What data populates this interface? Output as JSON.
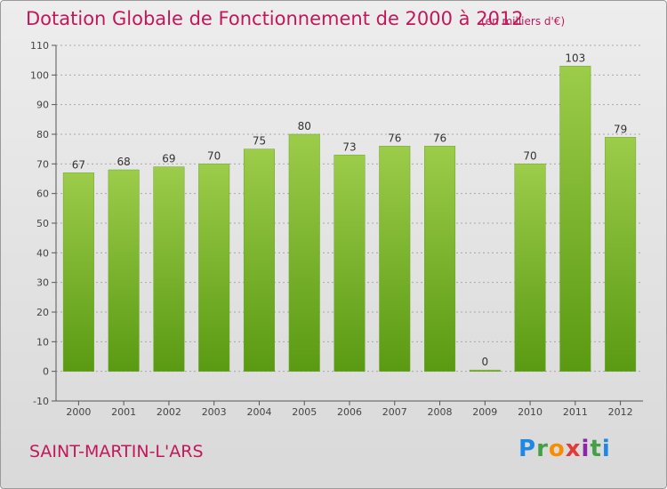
{
  "title": "Dotation Globale de Fonctionnement de 2000 à 2012",
  "unit": "(en milliers d'€)",
  "commune": "SAINT-MARTIN-L'ARS",
  "logo": "Proxiti",
  "chart_data": {
    "type": "bar",
    "title": "Dotation Globale de Fonctionnement de 2000 à 2012",
    "subtitle": "(en milliers d'€)",
    "xlabel": "",
    "ylabel": "",
    "categories": [
      "2000",
      "2001",
      "2002",
      "2003",
      "2004",
      "2005",
      "2006",
      "2007",
      "2008",
      "2009",
      "2010",
      "2011",
      "2012"
    ],
    "values": [
      67,
      68,
      69,
      70,
      75,
      80,
      73,
      76,
      76,
      0,
      70,
      103,
      79
    ],
    "ylim": [
      -10,
      110
    ],
    "yticks": [
      -10,
      0,
      10,
      20,
      30,
      40,
      50,
      60,
      70,
      80,
      90,
      100,
      110
    ],
    "grid": true,
    "legend": "none",
    "colors": {
      "bar_top": "#9ccc4a",
      "bar_bottom": "#5a9a12",
      "grid": "#a8a8a8",
      "text": "#c2185b"
    }
  }
}
